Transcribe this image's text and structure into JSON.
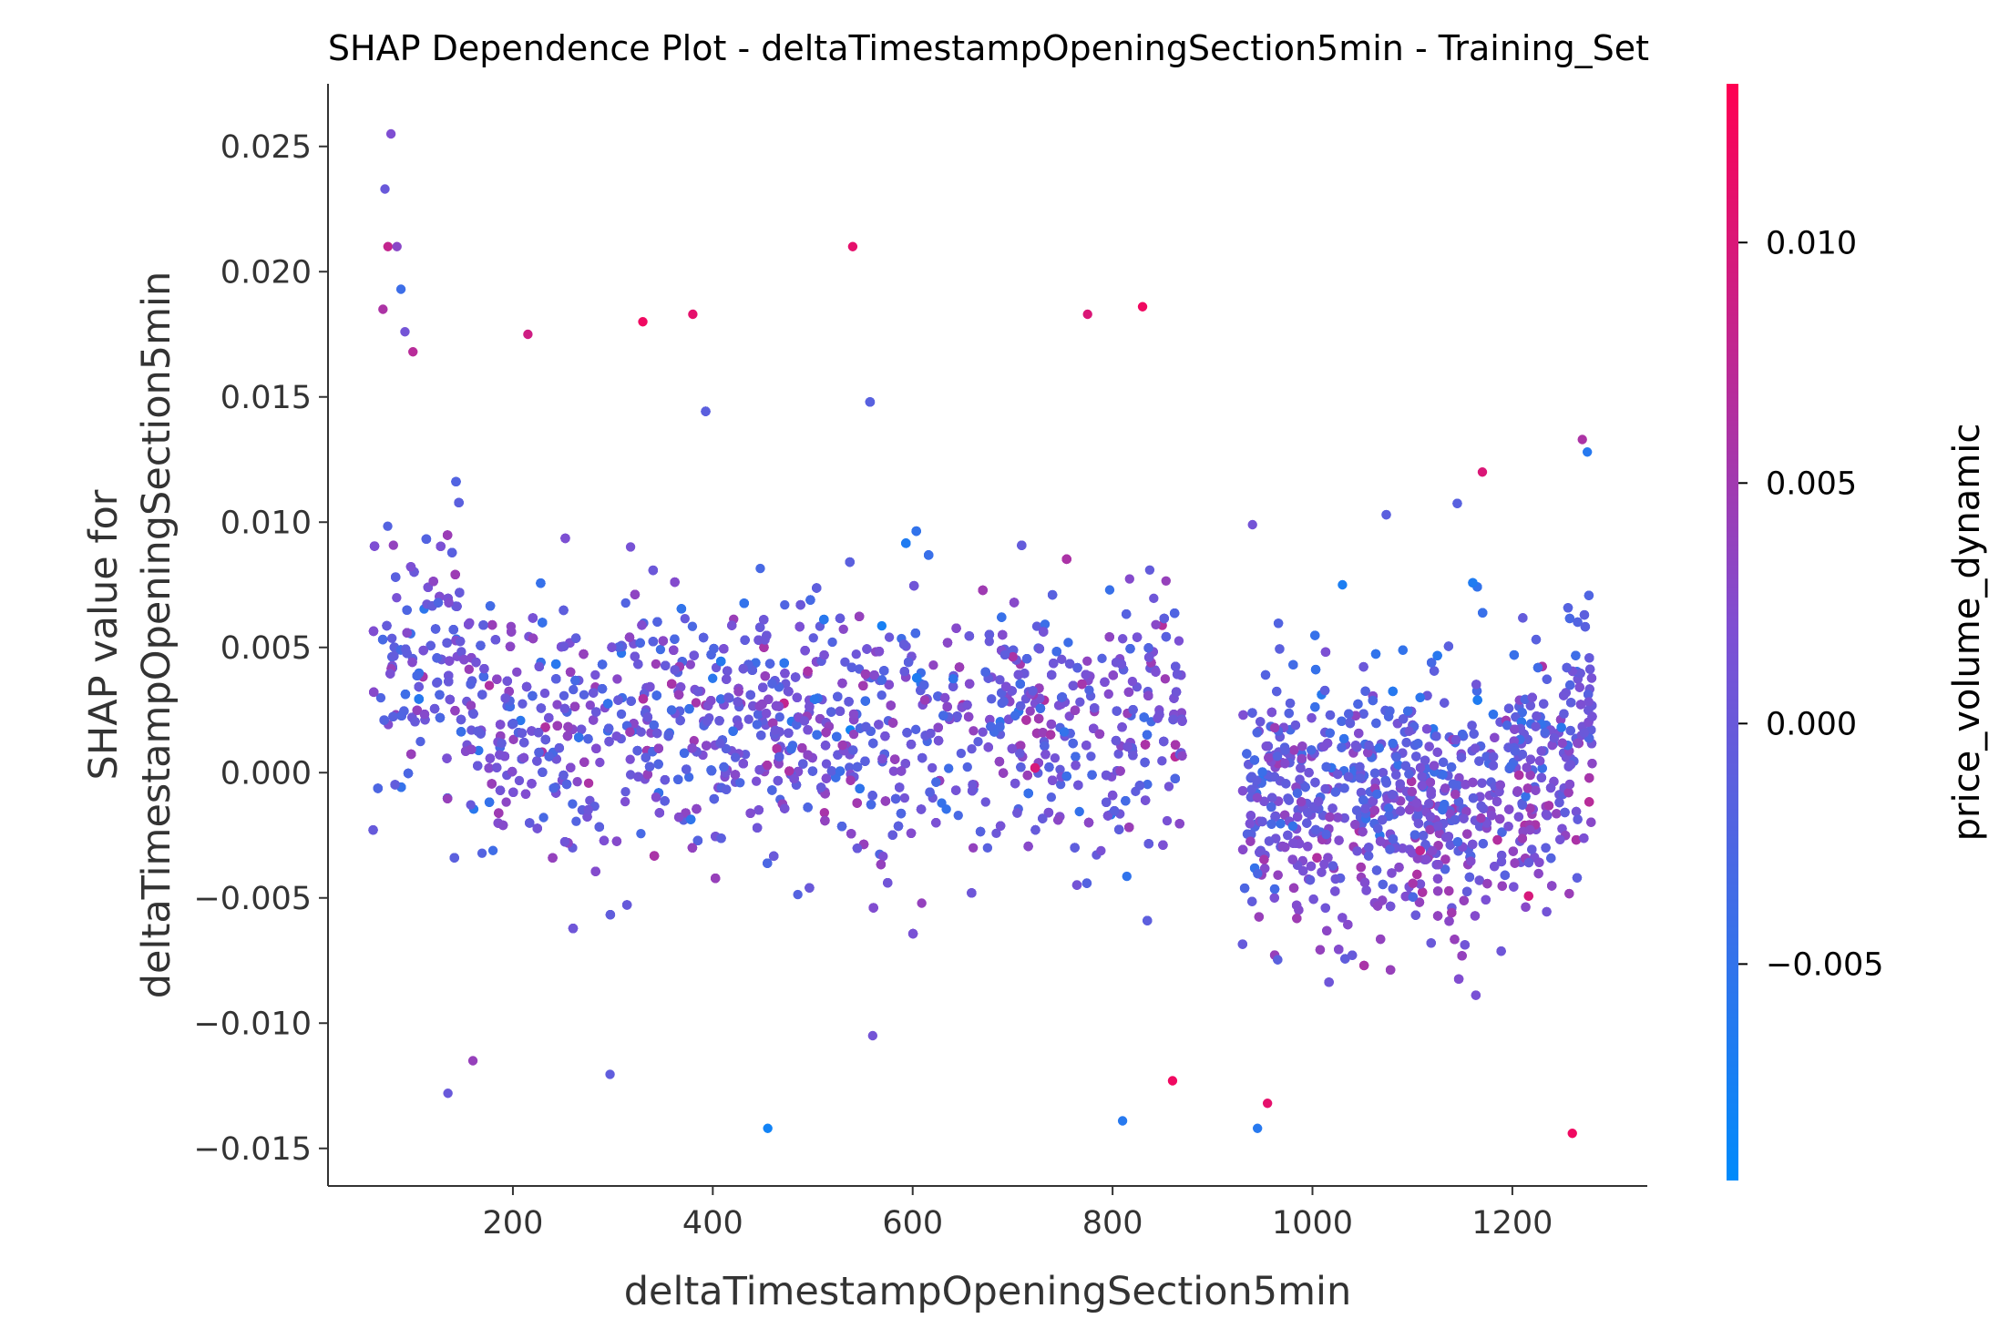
{
  "chart_data": {
    "type": "scatter",
    "title": "SHAP Dependence Plot - deltaTimestampOpeningSection5min - Training_Set",
    "xlabel": "deltaTimestampOpeningSection5min",
    "ylabel_lines": [
      "SHAP value for",
      "deltaTimestampOpeningSection5min"
    ],
    "xlim": [
      15,
      1335
    ],
    "ylim": [
      -0.0165,
      0.0275
    ],
    "x_ticks": [
      200,
      400,
      600,
      800,
      1000,
      1200
    ],
    "x_tick_labels": [
      "200",
      "400",
      "600",
      "800",
      "1000",
      "1200"
    ],
    "y_ticks": [
      -0.015,
      -0.01,
      -0.005,
      0.0,
      0.005,
      0.01,
      0.015,
      0.02,
      0.025
    ],
    "y_tick_labels": [
      "−0.015",
      "−0.010",
      "−0.005",
      "0.000",
      "0.005",
      "0.010",
      "0.015",
      "0.020",
      "0.025"
    ],
    "grid": false,
    "colorbar": {
      "label": "price_volume_dynamic",
      "range": [
        -0.0095,
        0.0133
      ],
      "ticks": [
        -0.005,
        0.0,
        0.005,
        0.01
      ],
      "tick_labels": [
        "−0.005",
        "0.000",
        "0.005",
        "0.010"
      ],
      "color_low": "#008bfb",
      "color_mid": "#7e4fd3",
      "color_high": "#ff0052"
    },
    "clusters": [
      {
        "x_range": [
          60,
          870
        ],
        "typical_shap_range": [
          -0.006,
          0.01
        ],
        "outlier_shap_range": [
          -0.0143,
          0.0255
        ]
      },
      {
        "x_range": [
          930,
          1280
        ],
        "typical_shap_range": [
          -0.008,
          0.006
        ],
        "outlier_shap_range": [
          -0.0145,
          0.0133
        ]
      }
    ],
    "points": [
      [
        72,
        0.0233,
        0.0
      ],
      [
        78,
        0.0255,
        0.002
      ],
      [
        75,
        0.021,
        0.008
      ],
      [
        84,
        0.021,
        0.003
      ],
      [
        88,
        0.0193,
        -0.004
      ],
      [
        70,
        0.0185,
        0.006
      ],
      [
        92,
        0.0176,
        0.001
      ],
      [
        100,
        0.0168,
        0.007
      ],
      [
        135,
        -0.0128,
        0.0
      ],
      [
        160,
        -0.0115,
        0.004
      ],
      [
        455,
        -0.0142,
        -0.008
      ],
      [
        540,
        0.021,
        0.011
      ],
      [
        810,
        -0.0139,
        -0.006
      ],
      [
        1260,
        -0.0144,
        0.012
      ],
      [
        945,
        -0.0142,
        -0.006
      ],
      [
        955,
        -0.0132,
        0.011
      ],
      [
        380,
        0.0183,
        0.011
      ],
      [
        830,
        0.0186,
        0.012
      ],
      [
        775,
        0.0183,
        0.01
      ],
      [
        215,
        0.0175,
        0.009
      ],
      [
        330,
        0.018,
        0.012
      ],
      [
        860,
        -0.0123,
        0.012
      ],
      [
        560,
        -0.0105,
        0.001
      ],
      [
        940,
        0.0099,
        0.001
      ],
      [
        1170,
        0.012,
        0.01
      ],
      [
        1270,
        0.0133,
        0.006
      ],
      [
        1275,
        0.0128,
        -0.006
      ],
      [
        1030,
        0.0075,
        -0.007
      ]
    ]
  }
}
